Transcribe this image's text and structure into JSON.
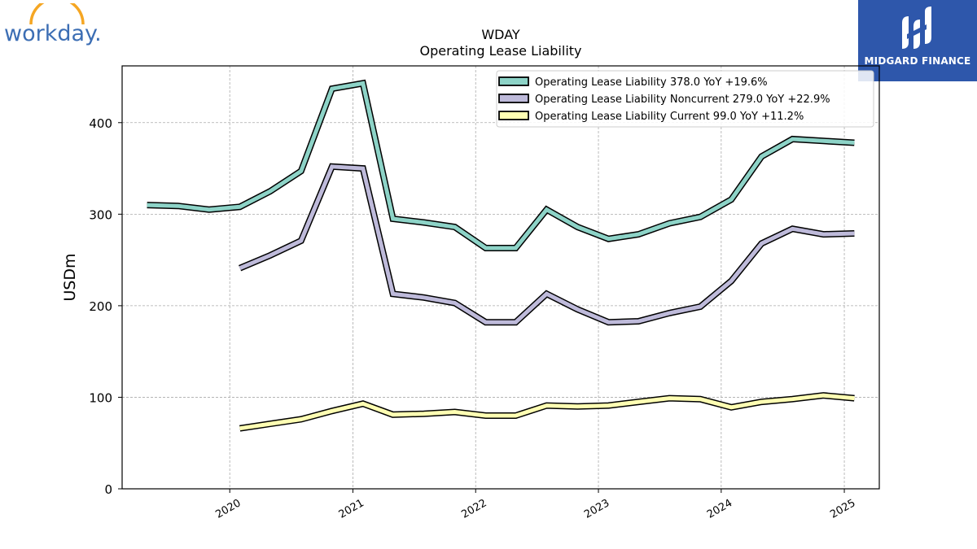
{
  "logo_text": "workday.",
  "brand": {
    "name": "MIDGARD FINANCE",
    "background": "#2e57ab"
  },
  "chart_data": {
    "type": "line",
    "title": "WDAY",
    "subtitle": "Operating Lease Liability",
    "ylabel": "USDm",
    "xlabel": "",
    "ylim": [
      0,
      462
    ],
    "yticks": [
      0,
      100,
      200,
      300,
      400
    ],
    "xticks": [
      "2020",
      "2021",
      "2022",
      "2023",
      "2024",
      "2025"
    ],
    "grid": true,
    "legend_position": "top-right",
    "x_dates": [
      "2019-04-30",
      "2019-07-31",
      "2019-10-31",
      "2020-01-31",
      "2020-04-30",
      "2020-07-31",
      "2020-10-31",
      "2021-01-31",
      "2021-04-30",
      "2021-07-31",
      "2021-10-31",
      "2022-01-31",
      "2022-04-30",
      "2022-07-31",
      "2022-10-31",
      "2023-01-31",
      "2023-04-30",
      "2023-07-31",
      "2023-10-31",
      "2024-01-31",
      "2024-04-30",
      "2024-07-31",
      "2024-10-31",
      "2025-01-31"
    ],
    "series": [
      {
        "name": "Operating Lease Liability",
        "legend": "Operating Lease Liability  378.0 YoY +19.6%",
        "color": "#8dd3c7",
        "values": [
          310,
          309,
          305,
          308,
          325,
          347,
          437,
          443,
          295,
          291,
          286,
          263,
          263,
          305,
          286,
          273,
          278,
          290,
          297,
          316,
          363,
          382,
          380,
          378
        ]
      },
      {
        "name": "Operating Lease Liability Noncurrent",
        "legend": "Operating Lease Liability Noncurrent  279.0 YoY +22.9%",
        "color": "#bebada",
        "values": [
          null,
          null,
          null,
          241,
          255,
          271,
          352,
          350,
          213,
          209,
          203,
          182,
          182,
          213,
          196,
          182,
          183,
          192,
          199,
          227,
          268,
          284,
          278,
          279
        ]
      },
      {
        "name": "Operating Lease Liability Current",
        "legend": "Operating Lease Liability Current  99.0 YoY +11.2%",
        "color": "#ffffb3",
        "values": [
          null,
          null,
          null,
          66,
          71,
          76,
          85,
          93,
          81,
          82,
          84,
          80,
          80,
          91,
          90,
          91,
          95,
          99,
          98,
          89,
          95,
          98,
          102,
          99
        ]
      }
    ]
  }
}
